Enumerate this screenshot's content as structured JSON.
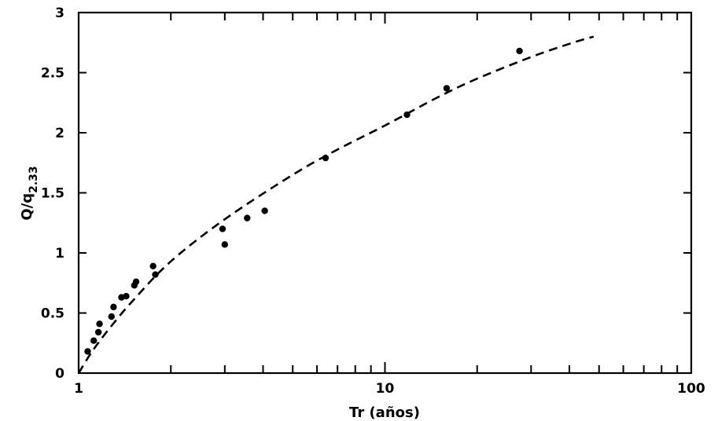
{
  "chart_data": {
    "type": "scatter",
    "title": "",
    "xlabel": "Tr (años)",
    "ylabel_main": "Q/q",
    "ylabel_sub": "2.33",
    "xscale": "log",
    "xlim": [
      1,
      100
    ],
    "ylim": [
      0,
      3
    ],
    "x_ticklabels": [
      "1",
      "10",
      "100"
    ],
    "y_ticklabels": [
      "0",
      "0.5",
      "1",
      "1.5",
      "2",
      "2.5",
      "3"
    ],
    "y_ticks": [
      0,
      0.5,
      1,
      1.5,
      2,
      2.5,
      3
    ],
    "x_major_ticks": [
      1,
      10,
      100
    ],
    "grid": false,
    "series": [
      {
        "kind": "points",
        "x": [
          1.07,
          1.12,
          1.16,
          1.17,
          1.28,
          1.3,
          1.38,
          1.43,
          1.52,
          1.54,
          1.75,
          1.78,
          2.95,
          3.0,
          3.55,
          4.05,
          6.4,
          11.8,
          15.9,
          27.5
        ],
        "y": [
          0.18,
          0.27,
          0.34,
          0.41,
          0.47,
          0.55,
          0.63,
          0.64,
          0.73,
          0.76,
          0.89,
          0.82,
          1.2,
          1.07,
          1.29,
          1.35,
          1.79,
          2.15,
          2.37,
          2.68
        ]
      },
      {
        "kind": "dashed-curve",
        "x": [
          1.0,
          1.1,
          1.25,
          1.5,
          2.0,
          3.0,
          5.0,
          7.0,
          10.0,
          15.0,
          20.0,
          30.0,
          40.0,
          48.0
        ],
        "y": [
          0.0,
          0.17,
          0.36,
          0.6,
          0.93,
          1.28,
          1.65,
          1.86,
          2.06,
          2.3,
          2.45,
          2.63,
          2.74,
          2.8
        ]
      }
    ]
  }
}
